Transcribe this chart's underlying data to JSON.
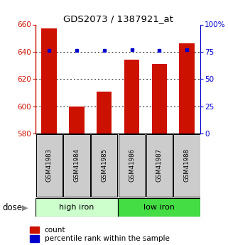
{
  "title": "GDS2073 / 1387921_at",
  "samples": [
    "GSM41983",
    "GSM41984",
    "GSM41985",
    "GSM41986",
    "GSM41987",
    "GSM41988"
  ],
  "counts": [
    657,
    600,
    611,
    634,
    631,
    646
  ],
  "percentiles": [
    76,
    76,
    76,
    77,
    76,
    77
  ],
  "ymin": 580,
  "ymax": 660,
  "yticks": [
    580,
    600,
    620,
    640,
    660
  ],
  "y2min": 0,
  "y2max": 100,
  "y2ticks": [
    0,
    25,
    50,
    75,
    100
  ],
  "y2ticklabels": [
    "0",
    "25",
    "50",
    "75",
    "100%"
  ],
  "bar_color": "#cc1100",
  "dot_color": "#0000cc",
  "groups": [
    {
      "label": "high iron",
      "indices": [
        0,
        1,
        2
      ],
      "color": "#ccffcc"
    },
    {
      "label": "low iron",
      "indices": [
        3,
        4,
        5
      ],
      "color": "#44dd44"
    }
  ],
  "group_label": "dose",
  "left_axis_color": "#cc1100",
  "right_axis_color": "#0000cc",
  "bar_width": 0.55,
  "baseline": 580,
  "grid_color": "black",
  "sample_box_color": "#cccccc",
  "legend_count_label": "count",
  "legend_pct_label": "percentile rank within the sample"
}
